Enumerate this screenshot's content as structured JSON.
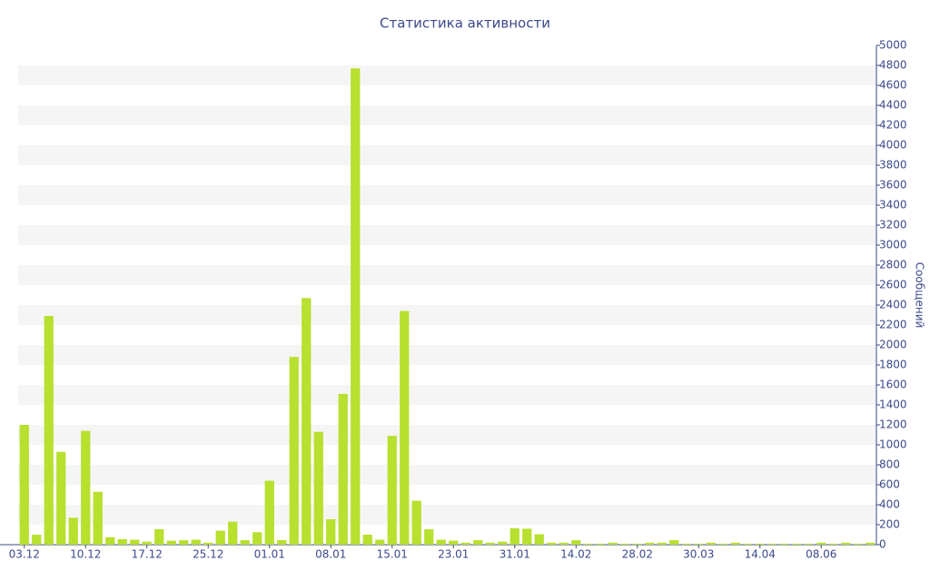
{
  "chart_data": {
    "type": "bar",
    "title": "Статистика активности",
    "y_label": "Сообщений",
    "categories": [
      "03.12",
      null,
      null,
      null,
      null,
      "10.12",
      null,
      null,
      null,
      null,
      "17.12",
      null,
      null,
      null,
      null,
      "25.12",
      null,
      null,
      null,
      null,
      "01.01",
      null,
      null,
      null,
      null,
      "08.01",
      null,
      null,
      null,
      null,
      "15.01",
      null,
      null,
      null,
      null,
      "23.01",
      null,
      null,
      null,
      null,
      "31.01",
      null,
      null,
      null,
      null,
      "14.02",
      null,
      null,
      null,
      null,
      "28.02",
      null,
      null,
      null,
      null,
      "30.03",
      null,
      null,
      null,
      null,
      "14.04",
      null,
      null,
      null,
      null,
      "08.06",
      null,
      null,
      null,
      null
    ],
    "values": [
      1200,
      100,
      2290,
      930,
      270,
      1140,
      530,
      75,
      55,
      50,
      30,
      155,
      40,
      45,
      50,
      20,
      140,
      230,
      45,
      125,
      640,
      45,
      1880,
      2470,
      1130,
      255,
      1510,
      4770,
      100,
      50,
      1090,
      2340,
      440,
      155,
      50,
      40,
      20,
      45,
      20,
      30,
      165,
      160,
      105,
      20,
      20,
      45,
      10,
      10,
      20,
      10,
      10,
      20,
      20,
      45,
      10,
      10,
      20,
      10,
      20,
      10,
      10,
      10,
      10,
      10,
      10,
      20,
      10,
      20,
      10,
      20
    ],
    "color": "#b7e02f",
    "ylim": [
      0,
      5000
    ],
    "yticks": [
      0,
      200,
      400,
      600,
      800,
      1000,
      1200,
      1400,
      1600,
      1800,
      2000,
      2200,
      2400,
      2600,
      2800,
      3000,
      3200,
      3400,
      3600,
      3800,
      4000,
      4200,
      4400,
      4600,
      4800,
      5000
    ],
    "grid": true
  }
}
